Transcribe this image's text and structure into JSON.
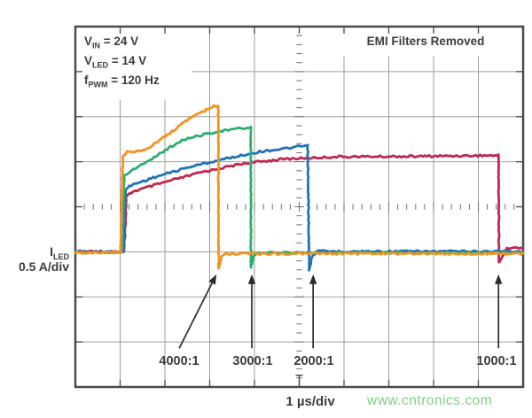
{
  "title": "EMI Filters Removed",
  "conditions": [
    {
      "base": "V",
      "sub": "IN",
      "rest": " = 24 V"
    },
    {
      "base": "V",
      "sub": "LED",
      "rest": " = 14 V"
    },
    {
      "base": "f",
      "sub": "PWM",
      "rest": " = 120 Hz"
    }
  ],
  "y_axis": {
    "base": "I",
    "sub": "LED",
    "scale": "0.5 A/div"
  },
  "x_axis": {
    "scale": "1 µs/div"
  },
  "watermark": {
    "text": "www.cntronics.com",
    "color": "#82ce82"
  },
  "colors": {
    "grid": "#9e9e9e",
    "frame": "#4a4a4a",
    "axis_ticks": "#6e6e6e",
    "arrow": "#2b2b2b",
    "text": "#3c3c3c"
  },
  "chart_data": {
    "type": "line",
    "title": "EMI Filters Removed",
    "xlabel": "1 µs/div",
    "ylabel": "0.5 A/div",
    "x_divisions": 10,
    "y_divisions": 8,
    "grid": true,
    "baseline_div_from_top": 5.0,
    "series": [
      {
        "name": "1000:1",
        "color": "#c0284f",
        "points": [
          [
            0,
            4.99
          ],
          [
            1.09,
            4.99
          ],
          [
            1.14,
            3.77
          ],
          [
            1.29,
            3.66
          ],
          [
            1.98,
            3.46
          ],
          [
            2.87,
            3.22
          ],
          [
            3.76,
            3.04
          ],
          [
            4.65,
            2.94
          ],
          [
            5.84,
            2.89
          ],
          [
            7.62,
            2.88
          ],
          [
            9.37,
            2.86
          ],
          [
            9.45,
            2.86
          ],
          [
            9.46,
            5.23
          ],
          [
            9.53,
            5.13
          ],
          [
            9.64,
            4.92
          ],
          [
            10,
            4.91
          ]
        ]
      },
      {
        "name": "2000:1",
        "color": "#2173b4",
        "points": [
          [
            0,
            5.0
          ],
          [
            1.07,
            5.0
          ],
          [
            1.12,
            3.62
          ],
          [
            1.25,
            3.52
          ],
          [
            1.78,
            3.34
          ],
          [
            2.57,
            3.11
          ],
          [
            3.37,
            2.93
          ],
          [
            4.16,
            2.77
          ],
          [
            4.75,
            2.7
          ],
          [
            5.19,
            2.64
          ],
          [
            5.22,
            5.41
          ],
          [
            5.29,
            5.09
          ],
          [
            5.41,
            4.99
          ],
          [
            10,
            4.99
          ]
        ]
      },
      {
        "name": "3000:1",
        "color": "#2ead6f",
        "points": [
          [
            0,
            5.01
          ],
          [
            1.04,
            5.01
          ],
          [
            1.09,
            3.3
          ],
          [
            1.21,
            3.22
          ],
          [
            1.72,
            2.92
          ],
          [
            2.38,
            2.52
          ],
          [
            3.01,
            2.36
          ],
          [
            3.51,
            2.28
          ],
          [
            3.84,
            2.25
          ],
          [
            3.92,
            2.23
          ],
          [
            3.92,
            5.35
          ],
          [
            3.99,
            5.09
          ],
          [
            4.08,
            5.02
          ],
          [
            10,
            5.02
          ]
        ]
      },
      {
        "name": "4000:1",
        "color": "#f5921e",
        "points": [
          [
            0,
            5.02
          ],
          [
            1.01,
            5.02
          ],
          [
            1.06,
            2.87
          ],
          [
            1.15,
            2.79
          ],
          [
            1.6,
            2.73
          ],
          [
            1.8,
            2.57
          ],
          [
            2.12,
            2.36
          ],
          [
            2.57,
            2.02
          ],
          [
            2.93,
            1.85
          ],
          [
            3.09,
            1.77
          ],
          [
            3.19,
            1.77
          ],
          [
            3.2,
            5.37
          ],
          [
            3.27,
            5.09
          ],
          [
            3.37,
            5.04
          ],
          [
            10,
            5.04
          ]
        ]
      }
    ],
    "annotations": [
      {
        "label": "4000:1",
        "from": [
          2.32,
          7.14
        ],
        "to": [
          3.15,
          5.5
        ]
      },
      {
        "label": "3000:1",
        "from": [
          3.94,
          7.14
        ],
        "to": [
          3.94,
          5.5
        ]
      },
      {
        "label": "2000:1",
        "from": [
          5.31,
          7.14
        ],
        "to": [
          5.31,
          5.5
        ]
      },
      {
        "label": "1000:1",
        "from": [
          9.45,
          7.14
        ],
        "to": [
          9.45,
          5.5
        ]
      }
    ],
    "trigger_marker_x_div": 5.0
  }
}
